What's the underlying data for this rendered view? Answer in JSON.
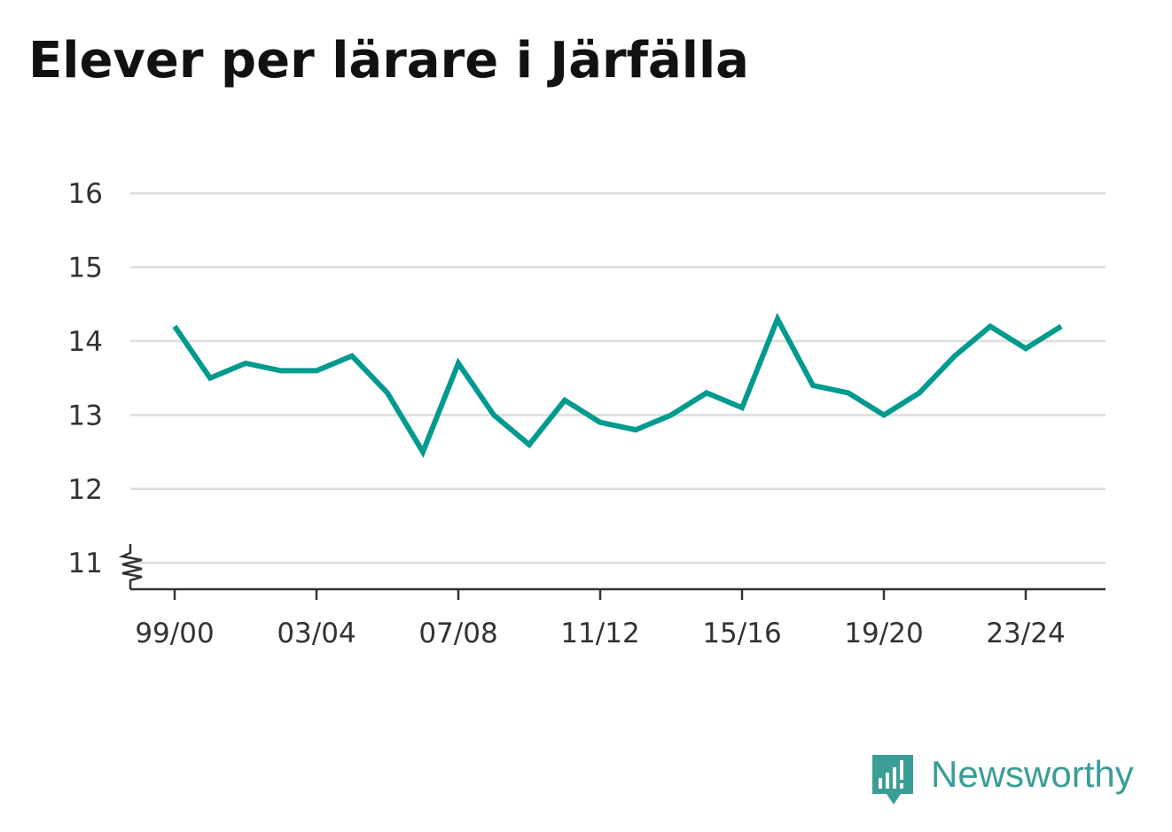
{
  "brand": {
    "name": "Newsworthy",
    "icon": "newsworthy-logo-icon",
    "color": "#3a9d96"
  },
  "chart_data": {
    "type": "line",
    "title": "Elever per lärare i Järfälla",
    "xlabel": "",
    "ylabel": "",
    "x": [
      "99/00",
      "00/01",
      "01/02",
      "02/03",
      "03/04",
      "04/05",
      "05/06",
      "06/07",
      "07/08",
      "08/09",
      "09/10",
      "10/11",
      "11/12",
      "12/13",
      "13/14",
      "14/15",
      "15/16",
      "16/17",
      "17/18",
      "18/19",
      "19/20",
      "20/21",
      "21/22",
      "22/23",
      "23/24",
      "24/25"
    ],
    "series": [
      {
        "color": "#009a8f",
        "values": [
          14.2,
          13.5,
          13.7,
          13.6,
          13.6,
          13.8,
          13.3,
          12.5,
          13.7,
          13.0,
          12.6,
          13.2,
          12.9,
          12.8,
          13.0,
          13.3,
          13.1,
          14.3,
          13.4,
          13.3,
          13.0,
          13.3,
          13.8,
          14.2,
          13.9,
          14.2
        ]
      }
    ],
    "x_ticks": [
      "99/00",
      "03/04",
      "07/08",
      "11/12",
      "15/16",
      "19/20",
      "23/24"
    ],
    "y_ticks": [
      11,
      12,
      13,
      14,
      15,
      16
    ],
    "ylim": [
      10.6,
      16
    ],
    "y_axis_break": true,
    "grid": true,
    "legend": "none"
  }
}
